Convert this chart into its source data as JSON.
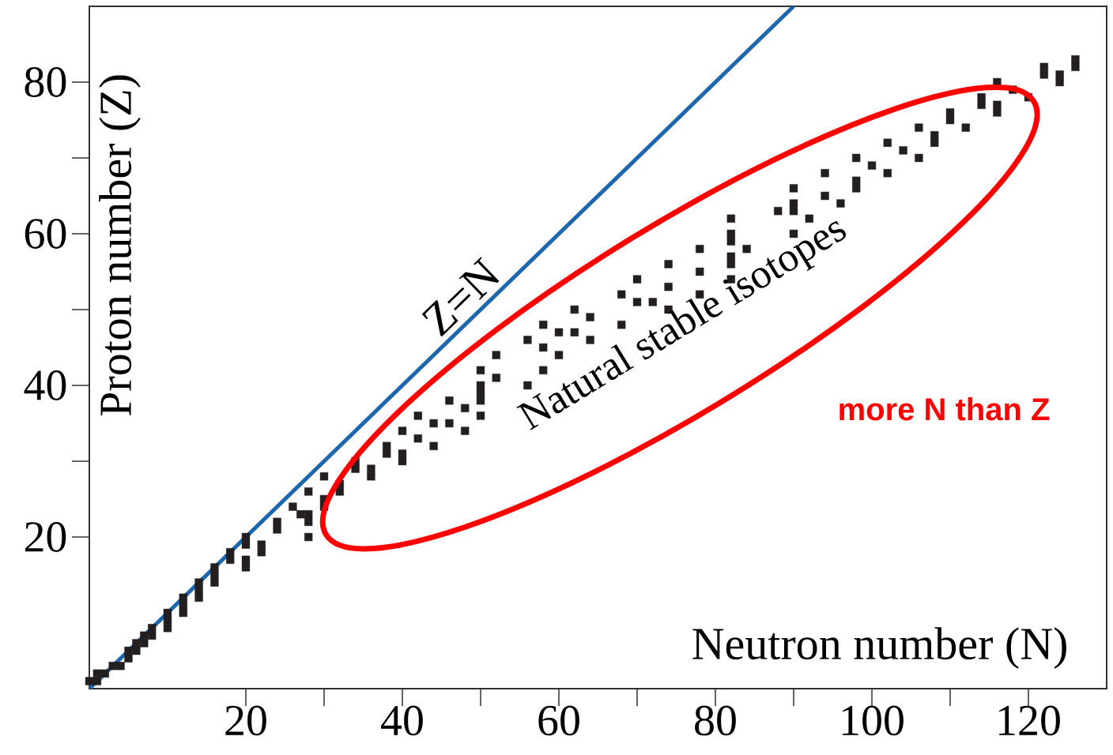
{
  "chart_data": {
    "type": "scatter",
    "xlabel": "Neutron number (N)",
    "ylabel": "Proton number (Z)",
    "xlim": [
      0,
      130
    ],
    "ylim": [
      0,
      90
    ],
    "xticks": [
      20,
      40,
      60,
      80,
      100,
      120
    ],
    "yticks": [
      20,
      40,
      60,
      80
    ],
    "grid": false,
    "series": [
      {
        "type": "line",
        "name": "Z=N",
        "color": "#1f67ad",
        "marker": "none",
        "line_style": "solid",
        "x": [
          0,
          90
        ],
        "values": [
          0,
          90
        ]
      },
      {
        "color": "#231f20",
        "marker": "square",
        "x": [
          0,
          1,
          1,
          2,
          3,
          4,
          5,
          5,
          6,
          6,
          7,
          7,
          8,
          8,
          10,
          10,
          10,
          12,
          12,
          12,
          14,
          14,
          14,
          16,
          16,
          16,
          20,
          18,
          20,
          18,
          22,
          20,
          22,
          20,
          28,
          24,
          24,
          28,
          27,
          28,
          26,
          30,
          30,
          28,
          32,
          32,
          30,
          36,
          34,
          36,
          34,
          40,
          38,
          40,
          38,
          44,
          42,
          40,
          48,
          44,
          46,
          42,
          50,
          48,
          46,
          50,
          50,
          50,
          56,
          52,
          50,
          58,
          52,
          60,
          58,
          56,
          64,
          60,
          62,
          58,
          68,
          64,
          62,
          74,
          70,
          72,
          68,
          78,
          74,
          70,
          82,
          78,
          74,
          82,
          82,
          78,
          84,
          82,
          82,
          90,
          82,
          92,
          88,
          90,
          90,
          96,
          94,
          90,
          98,
          98,
          94,
          102,
          100,
          98,
          106,
          104,
          102,
          108,
          108,
          106,
          112,
          110,
          110,
          116,
          114,
          116,
          114,
          120,
          118,
          116,
          124,
          122,
          124,
          122,
          126,
          126
        ],
        "values": [
          1,
          1,
          2,
          2,
          3,
          3,
          4,
          5,
          5,
          6,
          6,
          7,
          7,
          8,
          8,
          9,
          10,
          10,
          11,
          12,
          12,
          13,
          14,
          14,
          15,
          16,
          16,
          17,
          17,
          18,
          18,
          19,
          19,
          20,
          20,
          21,
          22,
          22,
          23,
          23,
          24,
          24,
          25,
          26,
          26,
          27,
          28,
          28,
          29,
          29,
          30,
          30,
          31,
          31,
          32,
          32,
          33,
          34,
          34,
          35,
          35,
          36,
          36,
          37,
          38,
          38,
          39,
          40,
          40,
          41,
          42,
          42,
          44,
          44,
          45,
          46,
          46,
          47,
          47,
          48,
          48,
          49,
          50,
          50,
          51,
          51,
          52,
          52,
          53,
          54,
          54,
          55,
          56,
          56,
          57,
          58,
          58,
          59,
          60,
          60,
          62,
          62,
          63,
          63,
          64,
          64,
          65,
          66,
          66,
          67,
          68,
          68,
          69,
          70,
          70,
          71,
          72,
          72,
          73,
          74,
          74,
          75,
          76,
          76,
          77,
          77,
          78,
          78,
          79,
          80,
          80,
          81,
          81,
          82,
          82,
          83
        ]
      }
    ],
    "annotations": [
      "Natural stable isotopes",
      "more N than Z"
    ]
  }
}
